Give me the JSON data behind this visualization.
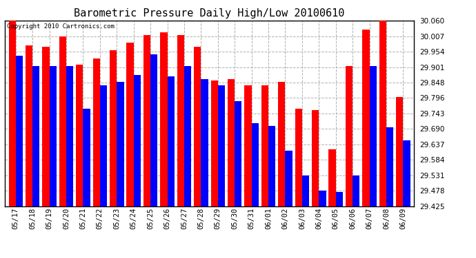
{
  "title": "Barometric Pressure Daily High/Low 20100610",
  "copyright": "Copyright 2010 Cartronics.com",
  "dates": [
    "05/17",
    "05/18",
    "05/19",
    "05/20",
    "05/21",
    "05/22",
    "05/23",
    "05/24",
    "05/25",
    "05/26",
    "05/27",
    "05/28",
    "05/29",
    "05/30",
    "05/31",
    "06/01",
    "06/02",
    "06/03",
    "06/04",
    "06/05",
    "06/06",
    "06/07",
    "06/08",
    "06/09"
  ],
  "highs": [
    30.06,
    29.975,
    29.97,
    30.005,
    29.91,
    29.93,
    29.96,
    29.985,
    30.01,
    30.02,
    30.01,
    29.97,
    29.855,
    29.86,
    29.84,
    29.84,
    29.85,
    29.76,
    29.755,
    29.62,
    29.905,
    30.03,
    30.062,
    29.8
  ],
  "lows": [
    29.94,
    29.905,
    29.905,
    29.905,
    29.76,
    29.84,
    29.85,
    29.875,
    29.945,
    29.87,
    29.905,
    29.86,
    29.84,
    29.785,
    29.71,
    29.7,
    29.615,
    29.53,
    29.48,
    29.475,
    29.53,
    29.905,
    29.695,
    29.65
  ],
  "high_color": "#ff0000",
  "low_color": "#0000ff",
  "bg_color": "#ffffff",
  "plot_bg_color": "#ffffff",
  "grid_color": "#b0b0b0",
  "ymin": 29.425,
  "ymax": 30.06,
  "yticks": [
    29.425,
    29.478,
    29.531,
    29.584,
    29.637,
    29.69,
    29.743,
    29.796,
    29.848,
    29.901,
    29.954,
    30.007,
    30.06
  ]
}
